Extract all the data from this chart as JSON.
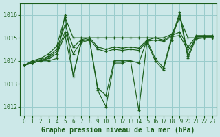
{
  "title": "Graphe pression niveau de la mer (hPa)",
  "xlim": [
    -0.5,
    23.5
  ],
  "ylim": [
    1011.6,
    1016.5
  ],
  "yticks": [
    1012,
    1013,
    1014,
    1015,
    1016
  ],
  "xticks": [
    0,
    1,
    2,
    3,
    4,
    5,
    6,
    7,
    8,
    9,
    10,
    11,
    12,
    13,
    14,
    15,
    16,
    17,
    18,
    19,
    20,
    21,
    22,
    23
  ],
  "bg_color": "#cce8e8",
  "grid_color": "#99cccc",
  "line_color": "#1a5e1a",
  "lines": [
    [
      1013.8,
      1013.9,
      1014.0,
      1014.0,
      1014.1,
      1016.0,
      1013.3,
      1014.9,
      1014.9,
      1012.7,
      1012.0,
      1013.9,
      1013.9,
      1014.0,
      1011.85,
      1014.8,
      1014.0,
      1013.6,
      1014.9,
      1016.0,
      1014.1,
      1015.0,
      1015.0,
      1015.0
    ],
    [
      1013.8,
      1013.9,
      1014.0,
      1014.1,
      1014.3,
      1015.1,
      1013.4,
      1014.8,
      1014.9,
      1012.8,
      1012.5,
      1014.0,
      1014.0,
      1014.0,
      1013.9,
      1014.9,
      1014.1,
      1013.7,
      1015.0,
      1016.1,
      1014.2,
      1015.1,
      1015.1,
      1015.1
    ],
    [
      1013.8,
      1013.9,
      1014.0,
      1014.15,
      1014.4,
      1015.25,
      1014.3,
      1014.85,
      1014.95,
      1014.5,
      1014.4,
      1014.5,
      1014.45,
      1014.5,
      1014.45,
      1014.85,
      1014.9,
      1014.85,
      1015.05,
      1015.1,
      1014.45,
      1014.95,
      1015.0,
      1015.0
    ],
    [
      1013.8,
      1013.95,
      1014.05,
      1014.2,
      1014.5,
      1015.55,
      1014.6,
      1014.92,
      1015.0,
      1014.6,
      1014.5,
      1014.6,
      1014.55,
      1014.6,
      1014.55,
      1014.9,
      1015.0,
      1014.9,
      1015.1,
      1015.25,
      1014.6,
      1015.05,
      1015.05,
      1015.05
    ],
    [
      1013.8,
      1014.0,
      1014.1,
      1014.3,
      1014.65,
      1015.9,
      1015.0,
      1015.0,
      1015.0,
      1015.0,
      1015.0,
      1015.0,
      1015.0,
      1015.0,
      1015.0,
      1015.0,
      1015.0,
      1015.0,
      1015.15,
      1015.85,
      1015.0,
      1015.0,
      1015.0,
      1015.0
    ]
  ],
  "marker": "+",
  "markersize": 3.0,
  "linewidth": 0.85,
  "title_fontsize": 7.0,
  "tick_fontsize": 5.5,
  "figsize": [
    3.2,
    2.0
  ],
  "dpi": 100
}
